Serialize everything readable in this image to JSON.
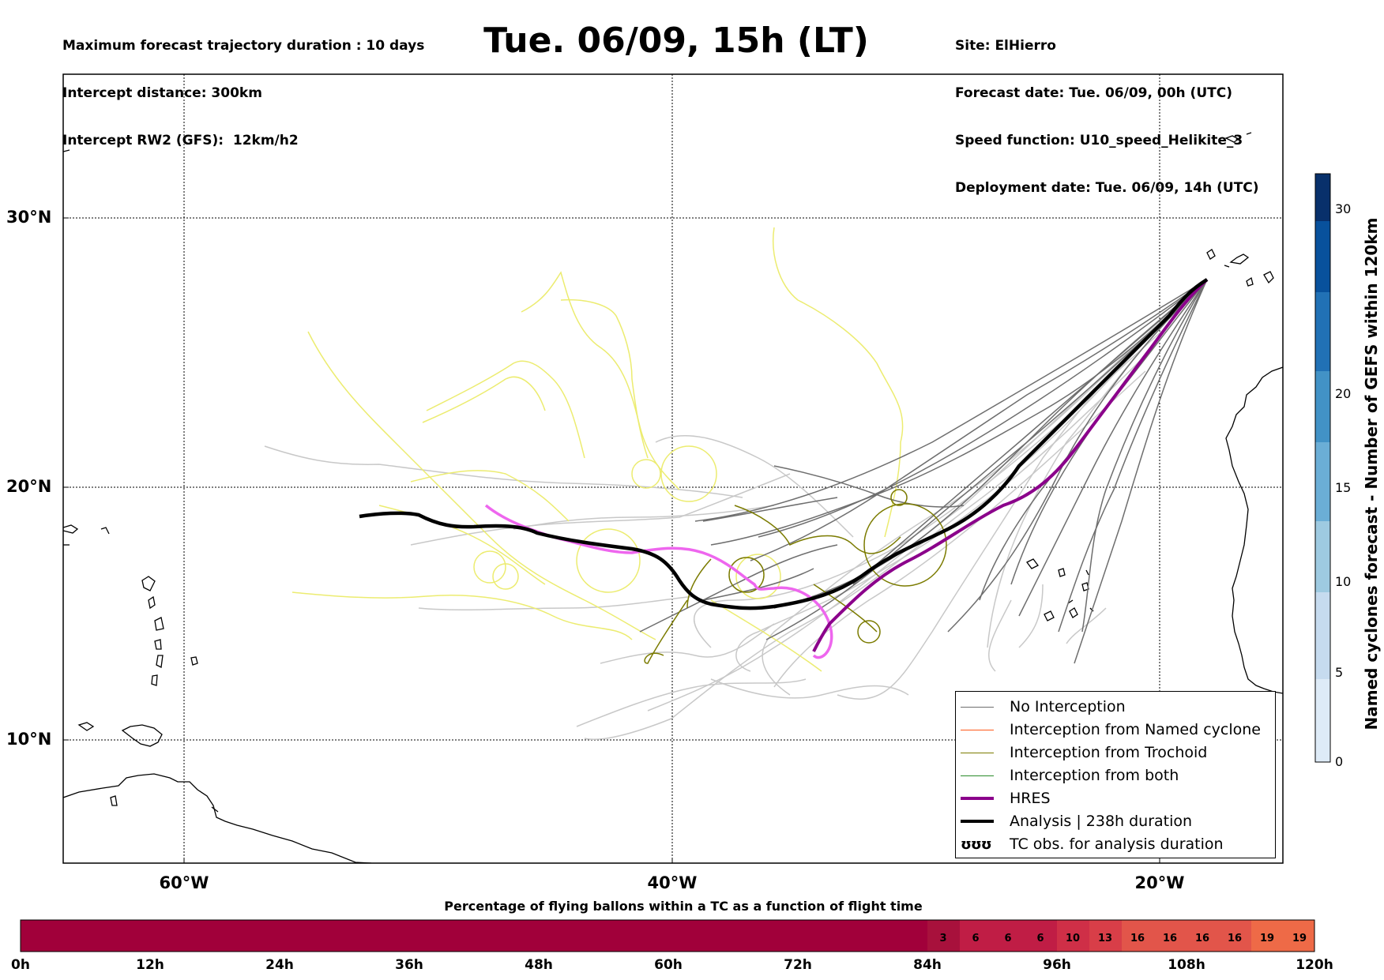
{
  "header_left": [
    "Maximum forecast trajectory duration : 10 days",
    "Intercept distance: 300km",
    "Intercept RW2 (GFS):  12km/h2"
  ],
  "title": "Tue. 06/09, 15h (LT)",
  "header_right": [
    "Site: ElHierro",
    "Forecast date: Tue. 06/09, 00h (UTC)",
    "Speed function: U10_speed_Helikite_3",
    "Deployment date: Tue. 06/09, 14h (UTC)"
  ],
  "map": {
    "lat_labels": [
      "30°N",
      "20°N",
      "10°N"
    ],
    "lon_labels": [
      "60°W",
      "40°W",
      "20°W"
    ],
    "grid": "dotted",
    "colors": {
      "no_interception": "#6e6e6e",
      "no_interception_light": "#c8c8c8",
      "named_cyclone": "#ff5a1a",
      "trochoid": "#7b7b00",
      "both": "#2a8a2a",
      "hres": "#8b008b",
      "hres_ensemble": "#ee66ee",
      "analysis": "#000000",
      "yellow_tracks": "#ecec70"
    }
  },
  "legend": {
    "items": [
      {
        "label": "No Interception",
        "symbol": "line"
      },
      {
        "label": "Interception from Named cyclone",
        "symbol": "line"
      },
      {
        "label": "Interception from Trochoid",
        "symbol": "line"
      },
      {
        "label": "Interception from both",
        "symbol": "line"
      },
      {
        "label": "HRES",
        "symbol": "thick-line"
      },
      {
        "label": "Analysis | 238h duration",
        "symbol": "thick-line"
      },
      {
        "label": "TC obs. for analysis duration",
        "symbol": "loops-icon",
        "glyph": "ʊʊʊ"
      }
    ]
  },
  "colorbar_vertical": {
    "label": "Named cyclones forecast - Number of GEFS within 120km",
    "ticks": [
      "0",
      "5",
      "10",
      "15",
      "20",
      "30"
    ],
    "colors": [
      "#deebf7",
      "#c6dbef",
      "#9ecae1",
      "#6baed6",
      "#4292c6",
      "#2171b5",
      "#08519c",
      "#08306b"
    ]
  },
  "colorbar_horizontal": {
    "title": "Percentage of flying ballons within a TC as a function of flight time",
    "tick_labels": [
      "0h",
      "12h",
      "24h",
      "36h",
      "48h",
      "60h",
      "72h",
      "84h",
      "96h",
      "108h",
      "120h"
    ],
    "cell_values": [
      "3",
      "6",
      "6",
      "6",
      "10",
      "13",
      "16",
      "16",
      "16",
      "16",
      "19",
      "19"
    ],
    "base_color": "#a1003a"
  }
}
